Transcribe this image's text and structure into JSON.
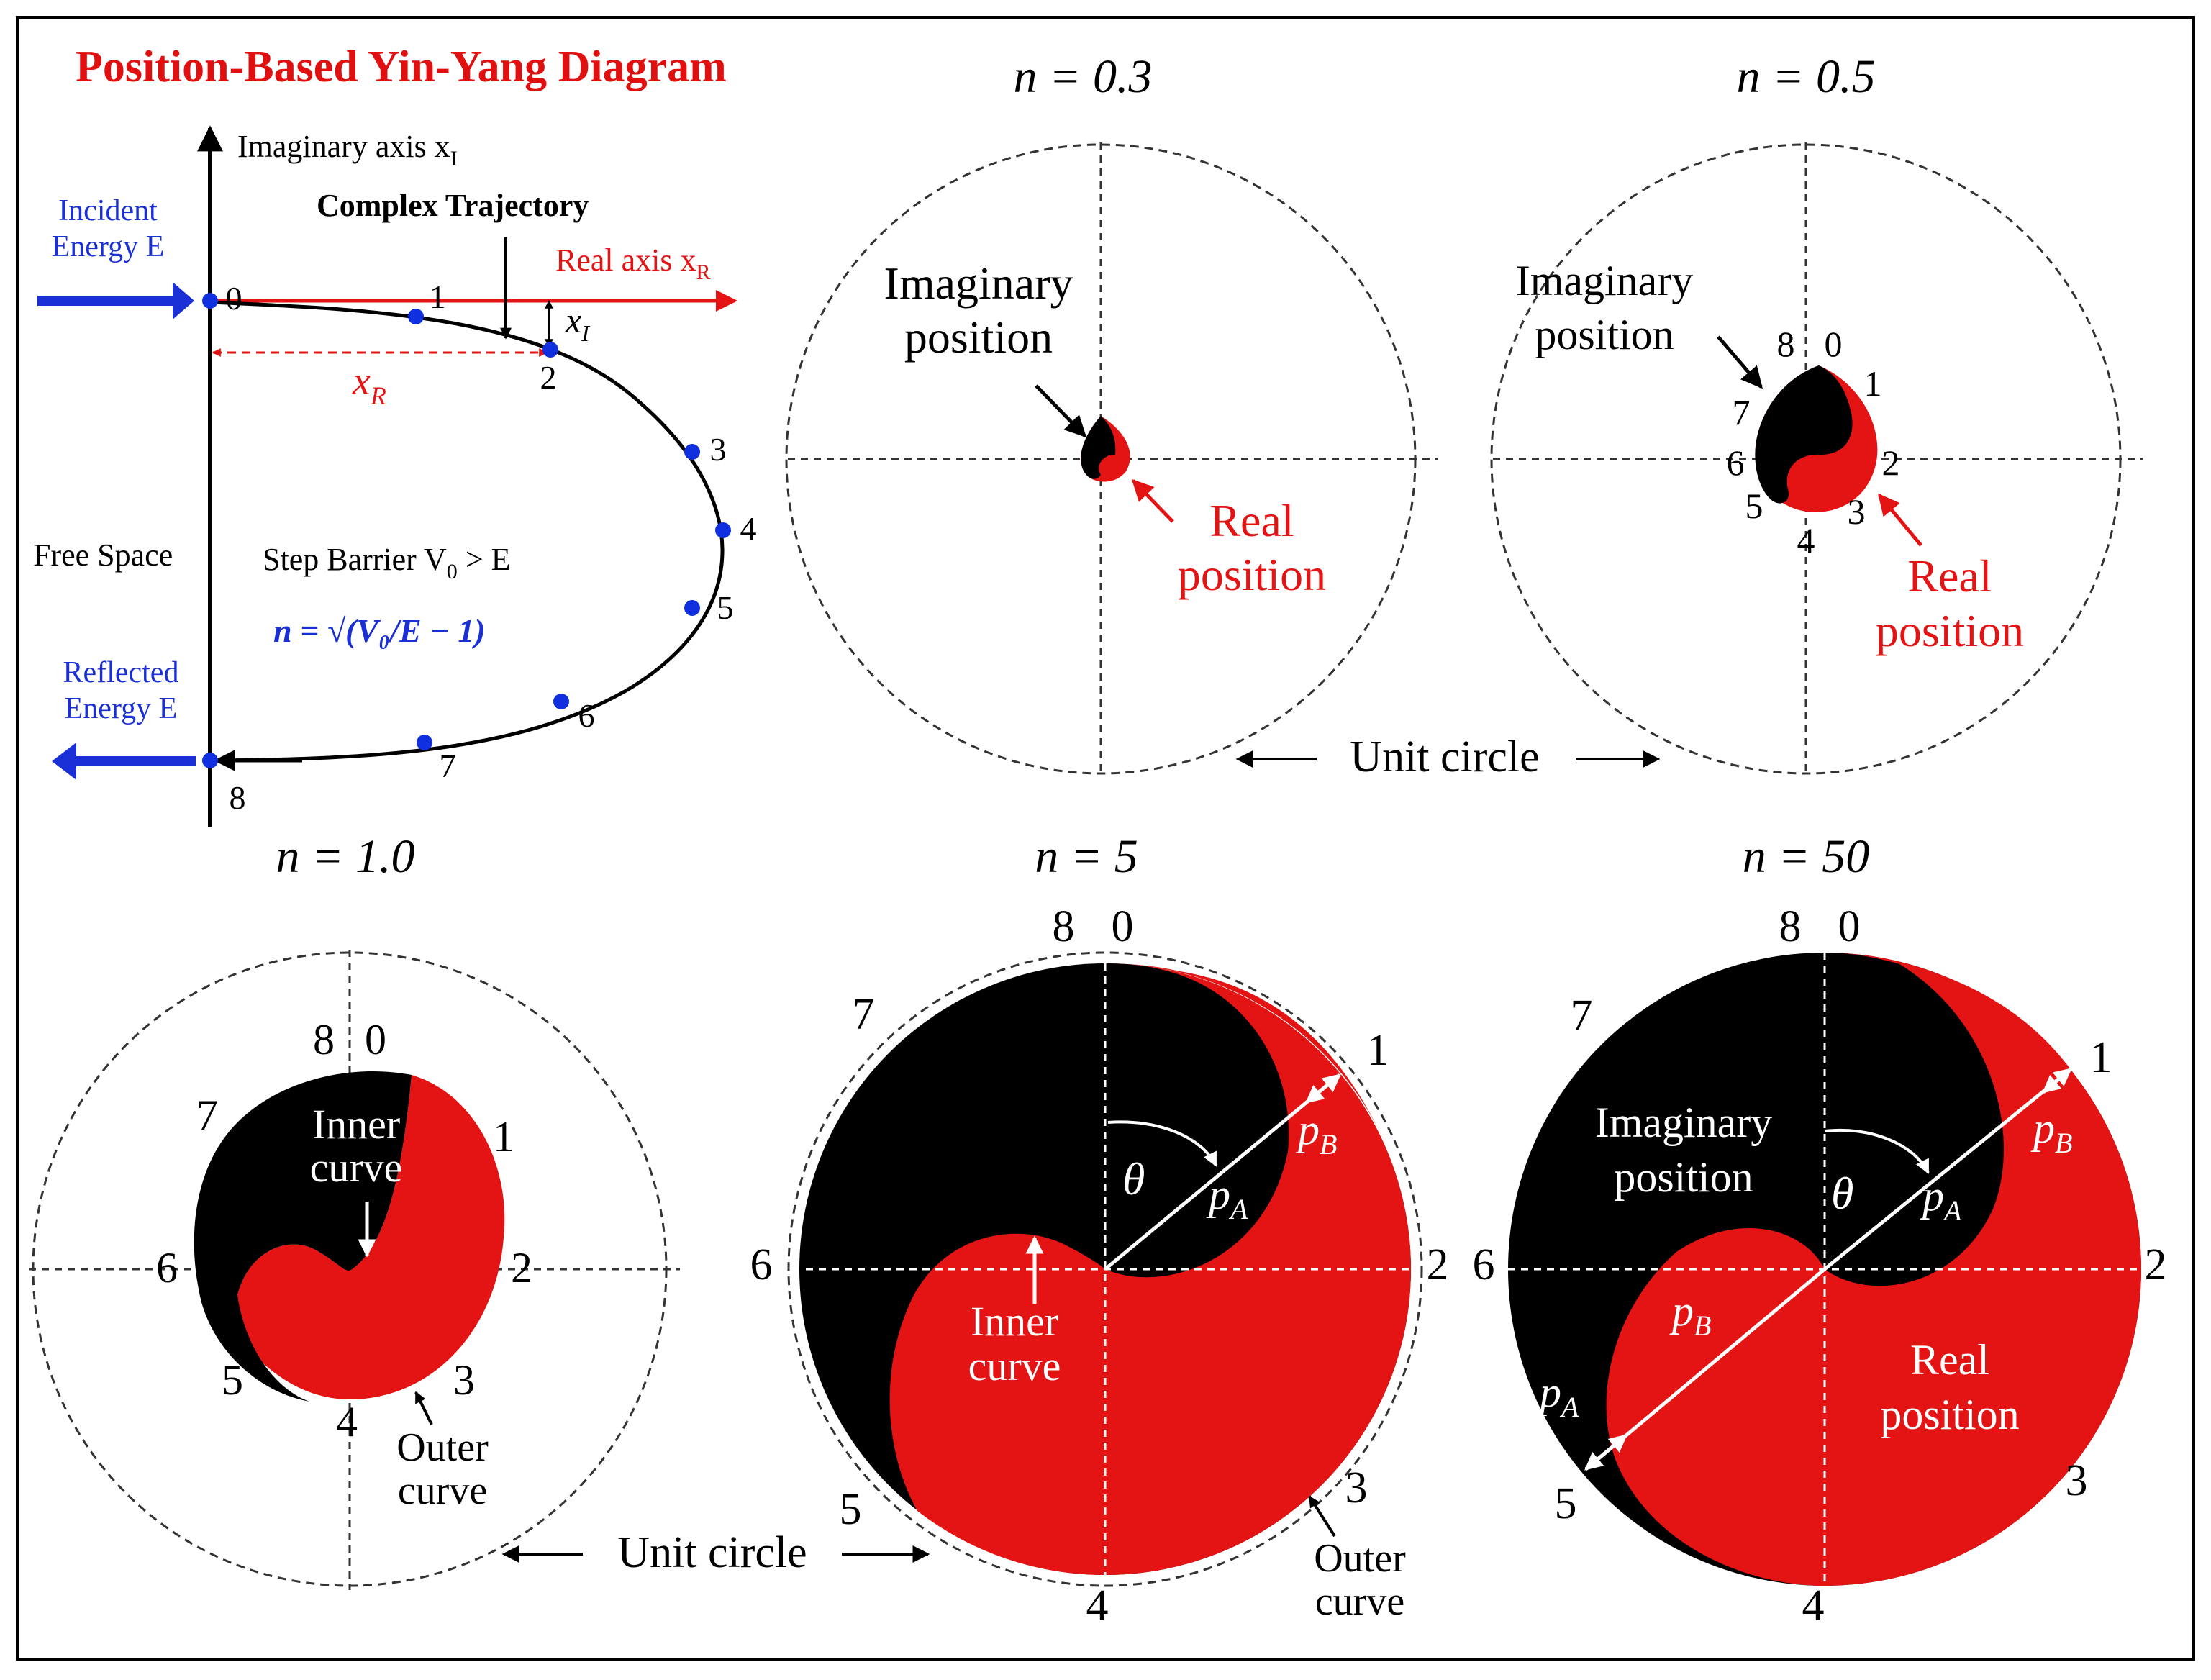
{
  "title": "Position-Based Yin-Yang Diagram",
  "colors": {
    "real": "#e41414",
    "imag": "#000000",
    "blue": "#1a2fd6",
    "dot": "#1030e0",
    "title": "#e01010"
  },
  "trajectory": {
    "imag_axis_label": "Imaginary axis x",
    "imag_axis_sub": "I",
    "real_axis_label": "Real axis x",
    "real_axis_sub": "R",
    "complex_trajectory": "Complex Trajectory",
    "incident_line1": "Incident",
    "incident_line2": "Energy E",
    "reflected_line1": "Reflected",
    "reflected_line2": "Energy E",
    "free_space": "Free Space",
    "step_barrier": "Step Barrier V",
    "step_barrier_sub": "0",
    "step_barrier_rest": " > E",
    "n_formula": "n = √(V₀/E − 1)",
    "xr_label": "x",
    "xr_sub": "R",
    "xi_label": "x",
    "xi_sub": "I",
    "points": [
      "0",
      "1",
      "2",
      "3",
      "4",
      "5",
      "6",
      "7",
      "8"
    ]
  },
  "panels": {
    "n03": {
      "title": "n = 0.3",
      "imag_label_1": "Imaginary",
      "imag_label_2": "position",
      "real_label_1": "Real",
      "real_label_2": "position"
    },
    "n05": {
      "title": "n = 0.5",
      "imag_label_1": "Imaginary",
      "imag_label_2": "position",
      "real_label_1": "Real",
      "real_label_2": "position",
      "nums": [
        "8",
        "0",
        "1",
        "7",
        "6",
        "2",
        "5",
        "3",
        "4"
      ]
    },
    "unit_circle_top": "Unit circle",
    "n10": {
      "title": "n = 1.0",
      "inner_1": "Inner",
      "inner_2": "curve",
      "outer_1": "Outer",
      "outer_2": "curve",
      "nums": [
        "8",
        "0",
        "7",
        "1",
        "6",
        "2",
        "5",
        "3",
        "4"
      ]
    },
    "unit_circle_bottom": "Unit circle",
    "n5": {
      "title": "n = 5",
      "inner_1": "Inner",
      "inner_2": "curve",
      "outer_1": "Outer",
      "outer_2": "curve",
      "theta": "θ",
      "pa": "p",
      "pa_sub": "A",
      "pb": "p",
      "pb_sub": "B",
      "nums": [
        "8",
        "0",
        "7",
        "1",
        "6",
        "2",
        "5",
        "3",
        "4"
      ]
    },
    "n50": {
      "title": "n = 50",
      "imag_1": "Imaginary",
      "imag_2": "position",
      "real_1": "Real",
      "real_2": "position",
      "theta": "θ",
      "pa": "p",
      "pa_sub": "A",
      "pb": "p",
      "pb_sub": "B",
      "nums": [
        "8",
        "0",
        "7",
        "1",
        "6",
        "2",
        "5",
        "3",
        "4"
      ]
    }
  }
}
